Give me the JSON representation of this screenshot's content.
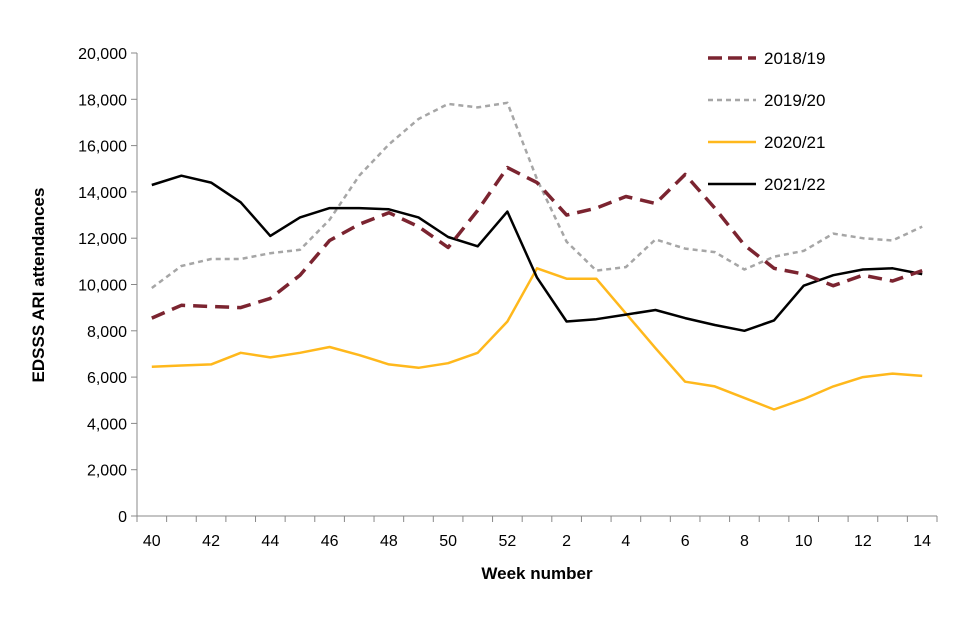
{
  "chart_data": {
    "type": "line",
    "title": "",
    "xlabel": "Week number",
    "ylabel": "EDSSS ARI attendances",
    "ylim": [
      0,
      20000
    ],
    "yticks": [
      0,
      2000,
      4000,
      6000,
      8000,
      10000,
      12000,
      14000,
      16000,
      18000,
      20000
    ],
    "ytick_labels": [
      "0",
      "2,000",
      "4,000",
      "6,000",
      "8,000",
      "10,000",
      "12,000",
      "14,000",
      "16,000",
      "18,000",
      "20,000"
    ],
    "categories": [
      "40",
      "41",
      "42",
      "43",
      "44",
      "45",
      "46",
      "47",
      "48",
      "49",
      "50",
      "51",
      "52",
      "1",
      "2",
      "3",
      "4",
      "5",
      "6",
      "7",
      "8",
      "9",
      "10",
      "11",
      "12",
      "13",
      "14"
    ],
    "xtick_labels": [
      "40",
      "42",
      "44",
      "46",
      "48",
      "50",
      "52",
      "2",
      "4",
      "6",
      "8",
      "10",
      "12",
      "14"
    ],
    "grid": false,
    "legend_position": "top-right",
    "series": [
      {
        "name": "2018/19",
        "color": "#7B2430",
        "style": "dashed",
        "values": [
          8550,
          9100,
          9050,
          9000,
          9400,
          10400,
          11900,
          12600,
          13100,
          12500,
          11600,
          13200,
          15050,
          14400,
          13000,
          13300,
          13800,
          13500,
          14750,
          13300,
          11700,
          10700,
          10450,
          9950,
          10400,
          10150,
          10600
        ]
      },
      {
        "name": "2019/20",
        "color": "#A6A6A6",
        "style": "dotted",
        "values": [
          9850,
          10800,
          11100,
          11100,
          11350,
          11500,
          12800,
          14700,
          16050,
          17150,
          17800,
          17650,
          17850,
          14550,
          11850,
          10600,
          10750,
          11950,
          11550,
          11400,
          10650,
          11200,
          11450,
          12200,
          12000,
          11900,
          12500
        ]
      },
      {
        "name": "2020/21",
        "color": "#FFB81C",
        "style": "solid",
        "values": [
          6450,
          6500,
          6550,
          7050,
          6850,
          7050,
          7300,
          6950,
          6550,
          6400,
          6600,
          7050,
          8400,
          10700,
          10250,
          10250,
          8750,
          7250,
          5800,
          5600,
          5100,
          4600,
          5050,
          5600,
          6000,
          6150,
          6050
        ]
      },
      {
        "name": "2021/22",
        "color": "#000000",
        "style": "solid",
        "values": [
          14300,
          14700,
          14400,
          13550,
          12100,
          12900,
          13300,
          13300,
          13250,
          12900,
          12050,
          11650,
          13150,
          10300,
          8400,
          8500,
          8700,
          8900,
          8550,
          8250,
          8000,
          8450,
          9950,
          10400,
          10650,
          10700,
          10450
        ]
      }
    ]
  }
}
